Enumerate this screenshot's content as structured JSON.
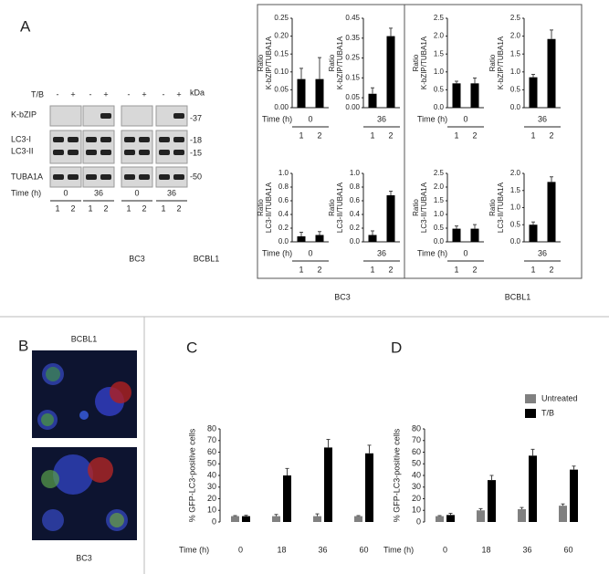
{
  "panel_a": {
    "label": "A",
    "groups": [
      "BC3",
      "BCBL1"
    ]
  },
  "blot": {
    "treatment_label": "T/B",
    "treatment": [
      "-",
      "+",
      "-",
      "+",
      "-",
      "+",
      "-",
      "+"
    ],
    "rows": [
      "K-bZIP",
      "LC3-I",
      "LC3-II",
      "TUBA1A"
    ],
    "kda_label": "kDa",
    "markers": [
      "-37",
      "-18",
      "-15",
      "-50"
    ],
    "time_label": "Time (h)",
    "times": [
      "0",
      "36",
      "0",
      "36"
    ],
    "lanes": [
      "1",
      "2",
      "1",
      "2",
      "1",
      "2",
      "1",
      "2"
    ],
    "cell_lines": [
      "BC3",
      "BCBL1"
    ]
  },
  "panel_b": {
    "label": "B",
    "image_titles": [
      "BCBL1",
      "BC3"
    ]
  },
  "panel_c": {
    "label": "C"
  },
  "panel_d": {
    "label": "D"
  },
  "chart_data": [
    {
      "type": "bar",
      "ylabel": [
        "Ratio",
        "K-bZIP/TUBA1A"
      ],
      "xlabel": "Time (h)",
      "group": "0",
      "categories": [
        "1",
        "2"
      ],
      "values": [
        0.08,
        0.08
      ],
      "errors": [
        0.03,
        0.06
      ],
      "color": "#000000",
      "ylim": [
        0,
        0.25
      ],
      "yticks": [
        {
          "value": 0,
          "label": "0.00"
        },
        0.05,
        {
          "value": 0.1,
          "label": "0.10"
        },
        0.15,
        {
          "value": 0.2,
          "label": "0.20"
        },
        0.25
      ]
    },
    {
      "type": "bar",
      "ylabel": [
        "Ratio",
        "K-bZIP/TUBA1A"
      ],
      "group": "36",
      "categories": [
        "1",
        "2"
      ],
      "values": [
        0.07,
        0.36
      ],
      "errors": [
        0.03,
        0.04
      ],
      "color": "#000000",
      "ylim": [
        0,
        0.45
      ],
      "yticks": [
        {
          "value": 0,
          "label": "0.00"
        },
        0.05,
        0.15,
        0.25,
        0.35,
        0.45
      ]
    },
    {
      "type": "bar",
      "ylabel": [
        "Ratio",
        "K-bZIP/TUBA1A"
      ],
      "xlabel": "Time (h)",
      "group": "0",
      "categories": [
        "1",
        "2"
      ],
      "values": [
        0.68,
        0.68
      ],
      "errors": [
        0.06,
        0.15
      ],
      "color": "#000000",
      "ylim": [
        0,
        2.5
      ],
      "yticks": [
        {
          "value": 0,
          "label": "0.0"
        },
        0.5,
        {
          "value": 1,
          "label": "1.0"
        },
        1.5,
        {
          "value": 2,
          "label": "2.0"
        },
        2.5
      ]
    },
    {
      "type": "bar",
      "ylabel": [
        "Ratio",
        "K-bZIP/TUBA1A"
      ],
      "group": "36",
      "categories": [
        "1",
        "2"
      ],
      "values": [
        0.85,
        1.92
      ],
      "errors": [
        0.08,
        0.25
      ],
      "color": "#000000",
      "ylim": [
        0,
        2.5
      ],
      "yticks": [
        {
          "value": 0,
          "label": "0.0"
        },
        0.5,
        {
          "value": 1,
          "label": "1.0"
        },
        1.5,
        {
          "value": 2,
          "label": "2.0"
        },
        2.5
      ]
    },
    {
      "type": "bar",
      "ylabel": [
        "Ratio",
        "LC3-II/TUBA1A"
      ],
      "xlabel": "Time (h)",
      "group": "0",
      "categories": [
        "1",
        "2"
      ],
      "values": [
        0.08,
        0.1
      ],
      "errors": [
        0.06,
        0.05
      ],
      "color": "#000000",
      "ylim": [
        0,
        1
      ],
      "yticks": [
        {
          "value": 0,
          "label": "0.0"
        },
        0.2,
        0.4,
        0.6,
        0.8,
        {
          "value": 1,
          "label": "1.0"
        }
      ]
    },
    {
      "type": "bar",
      "ylabel": [
        "Ratio",
        "LC3-II/TUBA1A"
      ],
      "group": "36",
      "categories": [
        "1",
        "2"
      ],
      "values": [
        0.1,
        0.68
      ],
      "errors": [
        0.06,
        0.06
      ],
      "color": "#000000",
      "ylim": [
        0,
        1
      ],
      "yticks": [
        {
          "value": 0,
          "label": "0.0"
        },
        0.2,
        0.4,
        0.6,
        0.8,
        {
          "value": 1,
          "label": "1.0"
        }
      ]
    },
    {
      "type": "bar",
      "ylabel": [
        "Ratio",
        "LC3-II/TUBA1A"
      ],
      "xlabel": "Time (h)",
      "group": "0",
      "categories": [
        "1",
        "2"
      ],
      "values": [
        0.48,
        0.48
      ],
      "errors": [
        0.1,
        0.15
      ],
      "color": "#000000",
      "ylim": [
        0,
        2.5
      ],
      "yticks": [
        {
          "value": 0,
          "label": "0.0"
        },
        0.5,
        {
          "value": 1,
          "label": "1.0"
        },
        1.5,
        {
          "value": 2,
          "label": "2.0"
        },
        2.5
      ]
    },
    {
      "type": "bar",
      "ylabel": [
        "Ratio",
        "LC3-II/TUBA1A"
      ],
      "group": "36",
      "categories": [
        "1",
        "2"
      ],
      "values": [
        0.5,
        1.75
      ],
      "errors": [
        0.08,
        0.15
      ],
      "color": "#000000",
      "ylim": [
        0,
        2
      ],
      "yticks": [
        {
          "value": 0,
          "label": "0.0"
        },
        0.5,
        {
          "value": 1,
          "label": "1.0"
        },
        1.5,
        {
          "value": 2,
          "label": "2.0"
        }
      ]
    },
    {
      "type": "grouped-bar",
      "ylabel": "% GFP-LC3-positive cells",
      "xlabel": "Time (h)",
      "categories": [
        "0",
        "18",
        "36",
        "60"
      ],
      "series": [
        {
          "color": "#808080",
          "values": [
            5,
            5,
            5,
            5
          ],
          "errors": [
            0.5,
            1.5,
            2,
            0.5
          ]
        },
        {
          "color": "#000000",
          "values": [
            5,
            40,
            64,
            59
          ],
          "errors": [
            0.8,
            6,
            7,
            7
          ]
        }
      ],
      "ylim": [
        0,
        80
      ],
      "yticks": [
        0,
        10,
        20,
        30,
        40,
        50,
        60,
        70,
        80
      ]
    },
    {
      "type": "grouped-bar",
      "ylabel": "% GFP-LC3-positive cells",
      "xlabel": "Time (h)",
      "categories": [
        "0",
        "18",
        "36",
        "60"
      ],
      "series": [
        {
          "name": "Untreated",
          "color": "#808080",
          "values": [
            5,
            10,
            11,
            14
          ],
          "errors": [
            0.5,
            1.5,
            1.5,
            1.5
          ]
        },
        {
          "name": "T/B",
          "color": "#000000",
          "values": [
            6,
            36,
            57,
            45
          ],
          "errors": [
            1.5,
            4,
            5.5,
            3
          ]
        }
      ],
      "ylim": [
        0,
        80
      ],
      "yticks": [
        0,
        10,
        20,
        30,
        40,
        50,
        60,
        70,
        80
      ]
    }
  ]
}
